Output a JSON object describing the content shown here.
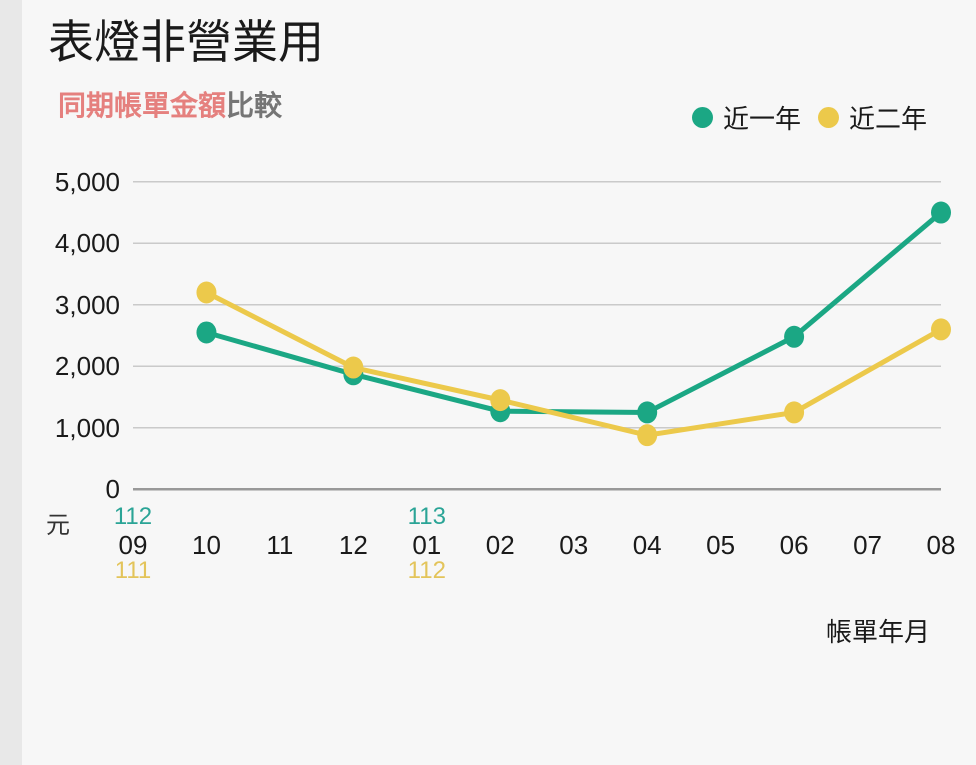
{
  "title": "表燈非營業用",
  "subtitle": {
    "highlight": "同期帳單金額",
    "rest": "比較"
  },
  "legend": {
    "items": [
      {
        "label": "近一年",
        "color": "#1ba784"
      },
      {
        "label": "近二年",
        "color": "#ecc94b"
      }
    ]
  },
  "chart_data": {
    "type": "line",
    "title": "同期帳單金額比較",
    "ylabel": "元",
    "xlabel": "帳單年月",
    "ylim": [
      0,
      5000
    ],
    "y_ticks": [
      0,
      1000,
      2000,
      3000,
      4000,
      5000
    ],
    "y_tick_labels": [
      "0",
      "1,000",
      "2,000",
      "3,000",
      "4,000",
      "5,000"
    ],
    "x_categories": [
      "09",
      "10",
      "11",
      "12",
      "01",
      "02",
      "03",
      "04",
      "05",
      "06",
      "07",
      "08"
    ],
    "x_year_annotations": [
      {
        "index": 0,
        "top": "112",
        "top_color": "#2aa496",
        "bottom": "111",
        "bottom_color": "#e3c45a"
      },
      {
        "index": 4,
        "top": "113",
        "top_color": "#2aa496",
        "bottom": "112",
        "bottom_color": "#e3c45a"
      }
    ],
    "grid": true,
    "legend_position": "top-right",
    "series": [
      {
        "name": "近一年",
        "color": "#1ba784",
        "x": [
          "10",
          "12",
          "02",
          "04",
          "06",
          "08"
        ],
        "values": [
          2550,
          1870,
          1270,
          1250,
          2480,
          4500
        ]
      },
      {
        "name": "近二年",
        "color": "#ecc94b",
        "x": [
          "10",
          "12",
          "02",
          "04",
          "06",
          "08"
        ],
        "values": [
          3200,
          1980,
          1450,
          880,
          1250,
          2600
        ]
      }
    ]
  }
}
